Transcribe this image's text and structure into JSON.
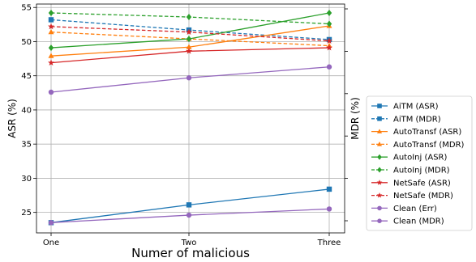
{
  "chart_data": {
    "type": "line",
    "categories": [
      "One",
      "Two",
      "Three"
    ],
    "xlabel": "Numer of malicious",
    "ylabel": "ASR (%)",
    "y2label": "MDR (%)",
    "ylim": [
      22,
      55.5
    ],
    "yticks": [
      25,
      30,
      35,
      40,
      45,
      50,
      55
    ],
    "y2lim": [
      35,
      100
    ],
    "y2_scale_note": "right axis has ticks but no tick labels",
    "grid": true,
    "legend_position": "outside-right",
    "series": [
      {
        "name": "AiTM (ASR)",
        "axis": "left",
        "values": [
          23.5,
          26.1,
          28.4
        ],
        "color": "#1f77b4",
        "linestyle": "solid",
        "marker": "square"
      },
      {
        "name": "AiTM (MDR)",
        "axis": "right",
        "values": [
          53.2,
          51.7,
          50.3
        ],
        "color": "#1f77b4",
        "linestyle": "dashed",
        "marker": "square"
      },
      {
        "name": "AutoTransf (ASR)",
        "axis": "left",
        "values": [
          47.9,
          49.2,
          52.3
        ],
        "color": "#ff7f0e",
        "linestyle": "solid",
        "marker": "triangle"
      },
      {
        "name": "AutoTransf (MDR)",
        "axis": "right",
        "values": [
          51.4,
          50.4,
          49.4
        ],
        "color": "#ff7f0e",
        "linestyle": "dashed",
        "marker": "triangle"
      },
      {
        "name": "AutoInj (ASR)",
        "axis": "left",
        "values": [
          49.1,
          50.4,
          54.2
        ],
        "color": "#2ca02c",
        "linestyle": "solid",
        "marker": "diamond"
      },
      {
        "name": "AutoInj (MDR)",
        "axis": "right",
        "values": [
          54.2,
          53.6,
          52.6
        ],
        "color": "#2ca02c",
        "linestyle": "dashed",
        "marker": "diamond"
      },
      {
        "name": "NetSafe (ASR)",
        "axis": "left",
        "values": [
          46.9,
          48.6,
          49.1
        ],
        "color": "#d62728",
        "linestyle": "solid",
        "marker": "star"
      },
      {
        "name": "NetSafe (MDR)",
        "axis": "right",
        "values": [
          52.2,
          51.4,
          50.1
        ],
        "color": "#d62728",
        "linestyle": "dashed",
        "marker": "star"
      },
      {
        "name": "Clean (Err)",
        "axis": "left",
        "values": [
          42.6,
          44.7,
          46.3
        ],
        "color": "#9467bd",
        "linestyle": "solid",
        "marker": "circle"
      },
      {
        "name": "Clean (MDR)",
        "axis": "left",
        "values": [
          23.5,
          24.6,
          25.5
        ],
        "color": "#9467bd",
        "linestyle": "solid",
        "marker": "circle"
      }
    ]
  }
}
